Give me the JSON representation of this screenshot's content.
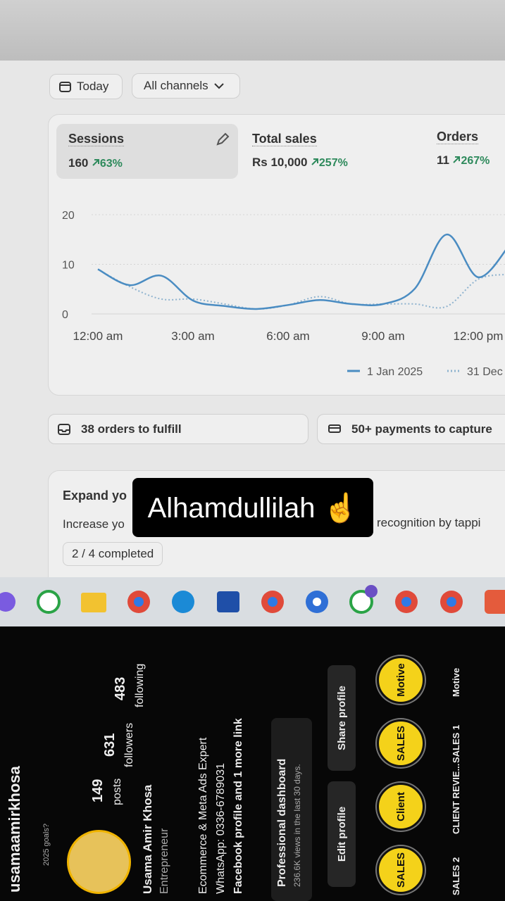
{
  "filters": [
    "Today",
    "All channels"
  ],
  "metrics": [
    {
      "label": "Sessions",
      "value": "160",
      "change": "63%"
    },
    {
      "label": "Total sales",
      "value": "Rs 10,000",
      "change": "257%"
    },
    {
      "label": "Orders",
      "value": "11",
      "change": "267%"
    }
  ],
  "chart": {
    "type": "line",
    "x": [
      0,
      1,
      2,
      3,
      4,
      5,
      6,
      7,
      8,
      9,
      10,
      11,
      12,
      13
    ],
    "xlim": [
      0,
      13
    ],
    "xticks": [
      {
        "value": 0,
        "label": "12:00 am"
      },
      {
        "value": 3,
        "label": "3:00 am"
      },
      {
        "value": 6,
        "label": "6:00 am"
      },
      {
        "value": 9,
        "label": "9:00 am"
      },
      {
        "value": 12,
        "label": "12:00 pm"
      }
    ],
    "ylim": [
      0,
      20
    ],
    "yticks": [
      0,
      10,
      20
    ],
    "grid": true,
    "series": [
      {
        "name": "1 Jan 2025",
        "color": "#4a8cc2",
        "style": "solid",
        "values": [
          9,
          5.8,
          7.7,
          2.7,
          1.6,
          1.0,
          1.8,
          2.8,
          2.0,
          2.0,
          5.1,
          16,
          7.4,
          14
        ]
      },
      {
        "name": "31 Dec",
        "color": "#8fb3cf",
        "style": "dotted",
        "values": [
          9,
          5.5,
          3,
          3,
          2,
          1,
          1.8,
          3.5,
          2,
          2,
          2,
          1.5,
          7,
          8
        ]
      }
    ]
  },
  "tasks": [
    "38 orders to fulfill",
    "50+ payments to capture"
  ],
  "setup": {
    "title": "Expand yo",
    "text_start": "Increase yo",
    "text_end": "recognition by tappi",
    "progress": "2 / 4 completed"
  },
  "overlay": "Alhamdullilah ☝️",
  "profile": {
    "username": "usamaamirkhosa",
    "goal": "2025 goals?",
    "stats": [
      {
        "value": "149",
        "label": "posts"
      },
      {
        "value": "631",
        "label": "followers"
      },
      {
        "value": "483",
        "label": "following"
      }
    ],
    "name": "Usama Amir Khosa",
    "category": "Entrepreneur",
    "bio": [
      "Ecommerce & Meta Ads Expert",
      "WhatsApp: 0336-6789031",
      "Facebook profile and 1 more link"
    ],
    "dashboard": "Professional dashboard",
    "dashboard_sub": "236.6K views in the last 30 days.",
    "buttons": [
      "Edit profile",
      "Share profile"
    ],
    "highlights": [
      "SALES 2",
      "CLIENT REVIE...",
      "SALES 1",
      "Motive"
    ]
  }
}
